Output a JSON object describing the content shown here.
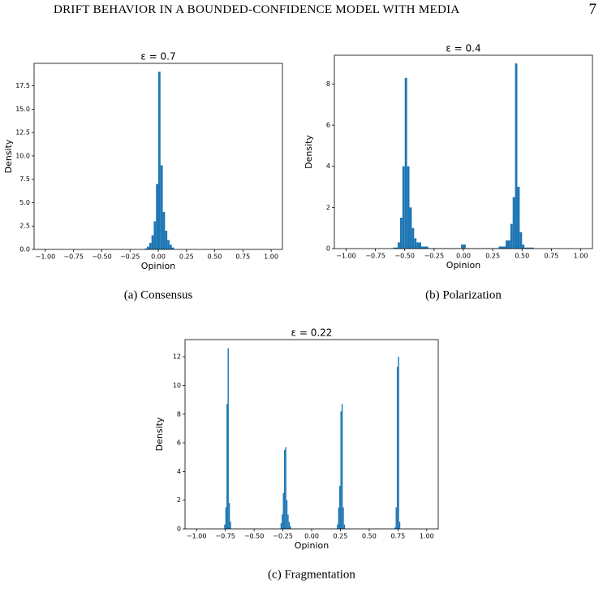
{
  "header": {
    "title": "DRIFT BEHAVIOR IN A BOUNDED-CONFIDENCE MODEL WITH MEDIA",
    "page_number": "7"
  },
  "chart_data": [
    {
      "type": "histogram",
      "title": "ε = 0.7",
      "xlabel": "Opinion",
      "ylabel": "Density",
      "caption": "(a) Consensus",
      "color": "#1f77b4",
      "bins": [
        -0.12,
        -0.1,
        -0.08,
        -0.06,
        -0.04,
        -0.02,
        0.0,
        0.02,
        0.04,
        0.06,
        0.08,
        0.1,
        0.12,
        0.14
      ],
      "counts": [
        0.1,
        0.3,
        0.7,
        1.5,
        3,
        7,
        19,
        9,
        4,
        2,
        1,
        0.5,
        0.2
      ],
      "xlim": [
        -1.1,
        1.1
      ],
      "ylim": [
        0,
        19.9
      ],
      "xticks": [
        {
          "value": -1,
          "label": "−1.00"
        },
        {
          "value": -0.75,
          "label": "−0.75"
        },
        {
          "value": -0.5,
          "label": "−0.50"
        },
        {
          "value": -0.25,
          "label": "−0.25"
        },
        {
          "value": 0,
          "label": "0.00"
        },
        {
          "value": 0.25,
          "label": "0.25"
        },
        {
          "value": 0.5,
          "label": "0.50"
        },
        {
          "value": 0.75,
          "label": "0.75"
        },
        {
          "value": 1,
          "label": "1.00"
        }
      ],
      "yticks": [
        {
          "value": 0,
          "label": "0.0"
        },
        2.5,
        {
          "value": 5,
          "label": "5.0"
        },
        7.5,
        {
          "value": 10,
          "label": "10.0"
        },
        12.5,
        {
          "value": 15,
          "label": "15.0"
        },
        17.5
      ]
    },
    {
      "type": "histogram",
      "title": "ε = 0.4",
      "xlabel": "Opinion",
      "ylabel": "Density",
      "caption": "(b) Polarization",
      "color": "#1f77b4",
      "bins": [
        -0.6,
        -0.56,
        -0.54,
        -0.52,
        -0.5,
        -0.48,
        -0.46,
        -0.44,
        -0.42,
        -0.4,
        -0.36,
        -0.3,
        -0.02,
        0.02,
        0.3,
        0.36,
        0.4,
        0.42,
        0.44,
        0.46,
        0.48,
        0.5,
        0.52,
        0.6
      ],
      "counts": [
        0.05,
        0.3,
        1.5,
        4,
        8.3,
        4,
        2,
        1,
        0.5,
        0.3,
        0.1,
        0.02,
        0.2,
        0.02,
        0.1,
        0.4,
        1.2,
        2.5,
        9,
        3,
        0.8,
        0.2,
        0.05
      ],
      "xlim": [
        -1.1,
        1.1
      ],
      "ylim": [
        0,
        9.4
      ],
      "xticks": [
        {
          "value": -1,
          "label": "−1.00"
        },
        {
          "value": -0.75,
          "label": "−0.75"
        },
        {
          "value": -0.5,
          "label": "−0.50"
        },
        {
          "value": -0.25,
          "label": "−0.25"
        },
        {
          "value": 0,
          "label": "0.00"
        },
        {
          "value": 0.25,
          "label": "0.25"
        },
        {
          "value": 0.5,
          "label": "0.50"
        },
        {
          "value": 0.75,
          "label": "0.75"
        },
        {
          "value": 1,
          "label": "1.00"
        }
      ],
      "yticks": [
        0,
        2,
        4,
        6,
        8
      ]
    },
    {
      "type": "histogram",
      "title": "ε = 0.22",
      "xlabel": "Opinion",
      "ylabel": "Density",
      "caption": "(c) Fragmentation",
      "color": "#1f77b4",
      "bins": [
        -0.76,
        -0.75,
        -0.74,
        -0.73,
        -0.72,
        -0.71,
        -0.7,
        -0.27,
        -0.26,
        -0.25,
        -0.24,
        -0.23,
        -0.22,
        -0.21,
        -0.2,
        -0.19,
        -0.18,
        0.22,
        0.23,
        0.24,
        0.25,
        0.26,
        0.27,
        0.28,
        0.29,
        0.72,
        0.73,
        0.74,
        0.75,
        0.76,
        0.77
      ],
      "counts": [
        0.3,
        1.5,
        8.7,
        12.6,
        1.8,
        0.5,
        0.01,
        0.4,
        1,
        2.5,
        5.5,
        5.7,
        2,
        1,
        0.5,
        0.2,
        0.01,
        0.3,
        1.5,
        3,
        8.2,
        8.7,
        1.5,
        0.3,
        0.01,
        0.1,
        1.5,
        11.3,
        12,
        0.5
      ],
      "xlim": [
        -1.1,
        1.1
      ],
      "ylim": [
        0,
        13.2
      ],
      "xticks": [
        {
          "value": -1,
          "label": "−1.00"
        },
        {
          "value": -0.75,
          "label": "−0.75"
        },
        {
          "value": -0.5,
          "label": "−0.50"
        },
        {
          "value": -0.25,
          "label": "−0.25"
        },
        {
          "value": 0,
          "label": "0.00"
        },
        {
          "value": 0.25,
          "label": "0.25"
        },
        {
          "value": 0.5,
          "label": "0.50"
        },
        {
          "value": 0.75,
          "label": "0.75"
        },
        {
          "value": 1,
          "label": "1.00"
        }
      ],
      "yticks": [
        0,
        2,
        4,
        6,
        8,
        10,
        12
      ]
    }
  ]
}
